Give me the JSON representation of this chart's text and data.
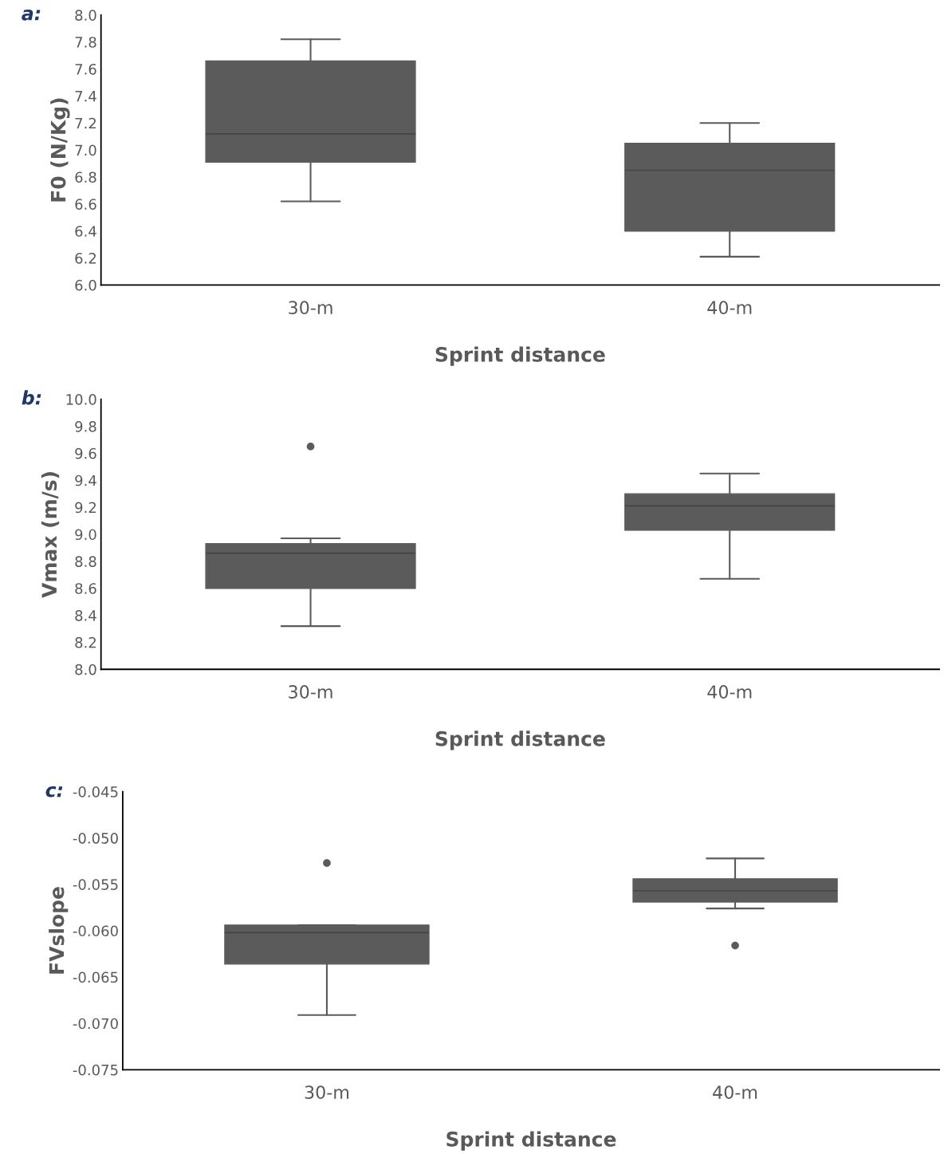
{
  "chart_data": [
    {
      "type": "box",
      "title": "a:",
      "categories": [
        "30-m",
        "40-m"
      ],
      "xlabel": "Sprint distance",
      "ylabel": "F0 (N/Kg)",
      "color": "#5b5b5b",
      "ylim": [
        6.0,
        8.0
      ],
      "yticks": [
        {
          "value": 6.0,
          "label": "6.0"
        },
        {
          "value": 6.2,
          "label": "6.2"
        },
        {
          "value": 6.4,
          "label": "6.4"
        },
        {
          "value": 6.6,
          "label": "6.6"
        },
        {
          "value": 6.8,
          "label": "6.8"
        },
        {
          "value": 7.0,
          "label": "7.0"
        },
        {
          "value": 7.2,
          "label": "7.2"
        },
        {
          "value": 7.4,
          "label": "7.4"
        },
        {
          "value": 7.6,
          "label": "7.6"
        },
        {
          "value": 7.8,
          "label": "7.8"
        },
        {
          "value": 8.0,
          "label": "8.0"
        }
      ],
      "boxes": [
        {
          "low": 6.62,
          "q1": 6.91,
          "median": 7.12,
          "q3": 7.66,
          "high": 7.82
        },
        {
          "low": 6.21,
          "q1": 6.4,
          "median": 6.85,
          "q3": 7.05,
          "high": 7.2
        }
      ],
      "grid": false,
      "legend": false
    },
    {
      "type": "box",
      "title": "b:",
      "categories": [
        "30-m",
        "40-m"
      ],
      "xlabel": "Sprint distance",
      "ylabel": "Vmax (m/s)",
      "color": "#5b5b5b",
      "ylim": [
        8.0,
        10.0
      ],
      "yticks": [
        {
          "value": 8.0,
          "label": "8.0"
        },
        {
          "value": 8.2,
          "label": "8.2"
        },
        {
          "value": 8.4,
          "label": "8.4"
        },
        {
          "value": 8.6,
          "label": "8.6"
        },
        {
          "value": 8.8,
          "label": "8.8"
        },
        {
          "value": 9.0,
          "label": "9.0"
        },
        {
          "value": 9.2,
          "label": "9.2"
        },
        {
          "value": 9.4,
          "label": "9.4"
        },
        {
          "value": 9.6,
          "label": "9.6"
        },
        {
          "value": 9.8,
          "label": "9.8"
        },
        {
          "value": 10.0,
          "label": "10.0"
        }
      ],
      "boxes": [
        {
          "low": 8.32,
          "q1": 8.6,
          "median": 8.86,
          "q3": 8.93,
          "high": 8.97,
          "outliers": [
            9.65
          ]
        },
        {
          "low": 8.67,
          "q1": 9.03,
          "median": 9.21,
          "q3": 9.3,
          "high": 9.45
        }
      ],
      "grid": false,
      "legend": false
    },
    {
      "type": "box",
      "title": "c:",
      "categories": [
        "30-m",
        "40-m"
      ],
      "xlabel": "Sprint distance",
      "ylabel": "FVslope",
      "color": "#5b5b5b",
      "ylim": [
        -0.075,
        -0.045
      ],
      "yticks": [
        {
          "value": -0.075,
          "label": "-0.075"
        },
        {
          "value": -0.07,
          "label": "-0.070"
        },
        {
          "value": -0.065,
          "label": "-0.065"
        },
        {
          "value": -0.06,
          "label": "-0.060"
        },
        {
          "value": -0.055,
          "label": "-0.055"
        },
        {
          "value": -0.05,
          "label": "-0.050"
        },
        {
          "value": -0.045,
          "label": "-0.045"
        }
      ],
      "boxes": [
        {
          "low": -0.0691,
          "q1": -0.0636,
          "median": -0.0602,
          "q3": -0.0594,
          "high": -0.0594,
          "outliers": [
            -0.0527
          ]
        },
        {
          "low": -0.0576,
          "q1": -0.0569,
          "median": -0.0557,
          "q3": -0.0544,
          "high": -0.0522,
          "outliers": [
            -0.0616
          ]
        }
      ],
      "grid": false,
      "legend": false
    }
  ]
}
